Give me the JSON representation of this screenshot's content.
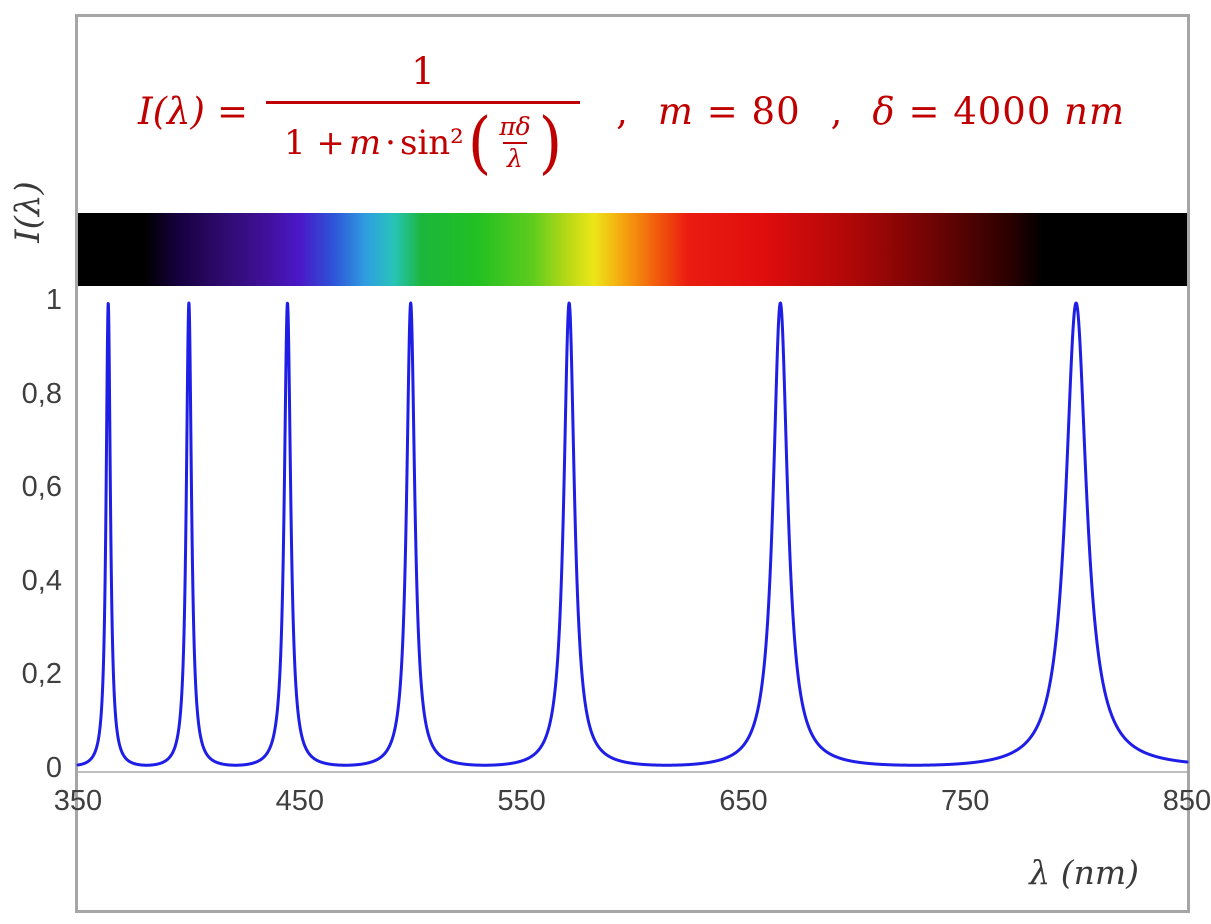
{
  "chart_data": {
    "type": "line",
    "title": "I(λ) = 1 / (1 + m·sin²(πδ/λ))  ,  m = 80  ,  δ = 4000 nm",
    "xlabel": "λ  (nm)",
    "ylabel": "I(λ)",
    "x": {
      "min": 350,
      "max": 850,
      "tick_labels": [
        "350",
        "450",
        "550",
        "650",
        "750",
        "850"
      ],
      "label": "λ  (nm)"
    },
    "y": {
      "min": 0,
      "max": 1,
      "tick_labels": [
        "1",
        "0,8",
        "0,6",
        "0,4",
        "0,2",
        "0"
      ],
      "label": "I(λ)"
    },
    "grid": false,
    "legend": "none",
    "params": {
      "m": 80,
      "delta_nm": 4000
    },
    "function": "I(lambda) = 1 / (1 + m * sin^2(pi * delta / lambda))",
    "peaks_nm": [
      363.6,
      400,
      444.4,
      500,
      571.4,
      666.7,
      800
    ],
    "peak_value": 1,
    "baseline_value": 0.0123,
    "curve_color": "#1e1ee6",
    "formula_color": "#c00000",
    "axis_color": "#bfbfbf",
    "frame_color": "#a6a6a6",
    "formula": {
      "lhs": "I(λ)",
      "eq": "=",
      "numerator": "1",
      "den_1": "1 +",
      "den_m": "m",
      "den_dot": "·",
      "den_sin": "sin²",
      "paren_open": "(",
      "paren_close": ")",
      "inner_numerator": "πδ",
      "inner_denominator": "λ",
      "comma": ",",
      "m_symbol": "m",
      "m_value": "= 80",
      "delta_symbol": "δ",
      "delta_value": "= 4000",
      "delta_unit": "nm"
    },
    "spectrum_bar": {
      "stops": [
        {
          "pos": 0,
          "color": "#000000"
        },
        {
          "pos": 6,
          "color": "#000000"
        },
        {
          "pos": 9,
          "color": "#16003d"
        },
        {
          "pos": 13,
          "color": "#2e0a6e"
        },
        {
          "pos": 17,
          "color": "#41109b"
        },
        {
          "pos": 20,
          "color": "#4a18c8"
        },
        {
          "pos": 23,
          "color": "#2e53d8"
        },
        {
          "pos": 26,
          "color": "#2f9fe0"
        },
        {
          "pos": 28.5,
          "color": "#27c4b8"
        },
        {
          "pos": 31,
          "color": "#1cb63c"
        },
        {
          "pos": 36,
          "color": "#22c022"
        },
        {
          "pos": 41,
          "color": "#5ecc1e"
        },
        {
          "pos": 44,
          "color": "#b4d816"
        },
        {
          "pos": 46.5,
          "color": "#ede619"
        },
        {
          "pos": 49,
          "color": "#f5a80f"
        },
        {
          "pos": 52,
          "color": "#f2600d"
        },
        {
          "pos": 55,
          "color": "#ea1c10"
        },
        {
          "pos": 62,
          "color": "#df0d0d"
        },
        {
          "pos": 70,
          "color": "#ae0707"
        },
        {
          "pos": 78,
          "color": "#660303"
        },
        {
          "pos": 84,
          "color": "#2b0000"
        },
        {
          "pos": 87,
          "color": "#000000"
        },
        {
          "pos": 100,
          "color": "#000000"
        }
      ]
    }
  }
}
